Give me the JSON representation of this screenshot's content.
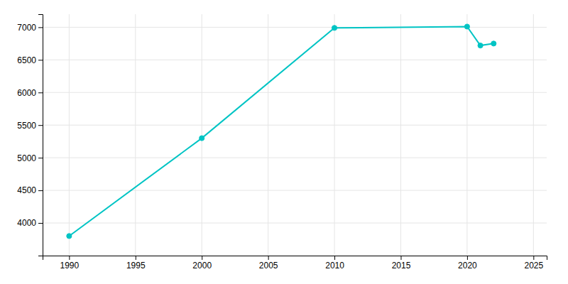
{
  "chart_data": {
    "type": "line",
    "x": [
      1990,
      2000,
      2010,
      2020,
      2021,
      2022
    ],
    "values": [
      3800,
      5300,
      6990,
      7010,
      6720,
      6750
    ],
    "color": "#00C4C4",
    "marker": "circle",
    "xlim": [
      1988,
      2026
    ],
    "ylim": [
      3500,
      7200
    ],
    "xticks": [
      1990,
      1995,
      2000,
      2005,
      2010,
      2015,
      2020,
      2025
    ],
    "yticks": [
      4000,
      4500,
      5000,
      5500,
      6000,
      6500,
      7000
    ],
    "grid": true
  }
}
